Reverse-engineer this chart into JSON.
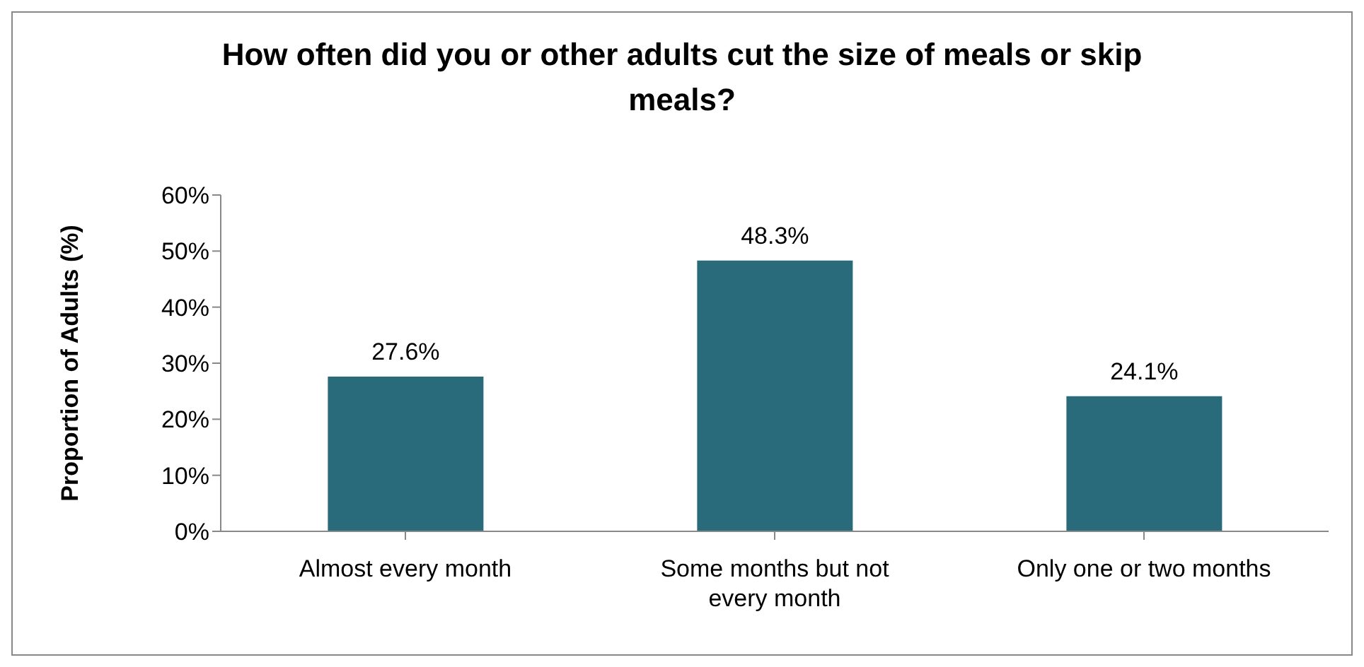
{
  "chart_data": {
    "type": "bar",
    "title": "How often did you or other adults cut the size of meals or skip meals?",
    "ylabel": "Proportion of Adults (%)",
    "categories": [
      "Almost every month",
      "Some months but not every month",
      "Only one or two months"
    ],
    "series": [
      {
        "color": "#2a6b7b",
        "values": [
          27.6,
          48.3,
          24.1
        ],
        "value_labels": [
          "27.6%",
          "48.3%",
          "24.1%"
        ]
      }
    ],
    "ylim": [
      0,
      60
    ],
    "yticks": [
      {
        "value": 0,
        "label": "0%"
      },
      {
        "value": 10,
        "label": "10%"
      },
      {
        "value": 20,
        "label": "20%"
      },
      {
        "value": 30,
        "label": "30%"
      },
      {
        "value": 40,
        "label": "40%"
      },
      {
        "value": 50,
        "label": "50%"
      },
      {
        "value": 60,
        "label": "60%"
      }
    ],
    "grid": false,
    "legend": false
  }
}
